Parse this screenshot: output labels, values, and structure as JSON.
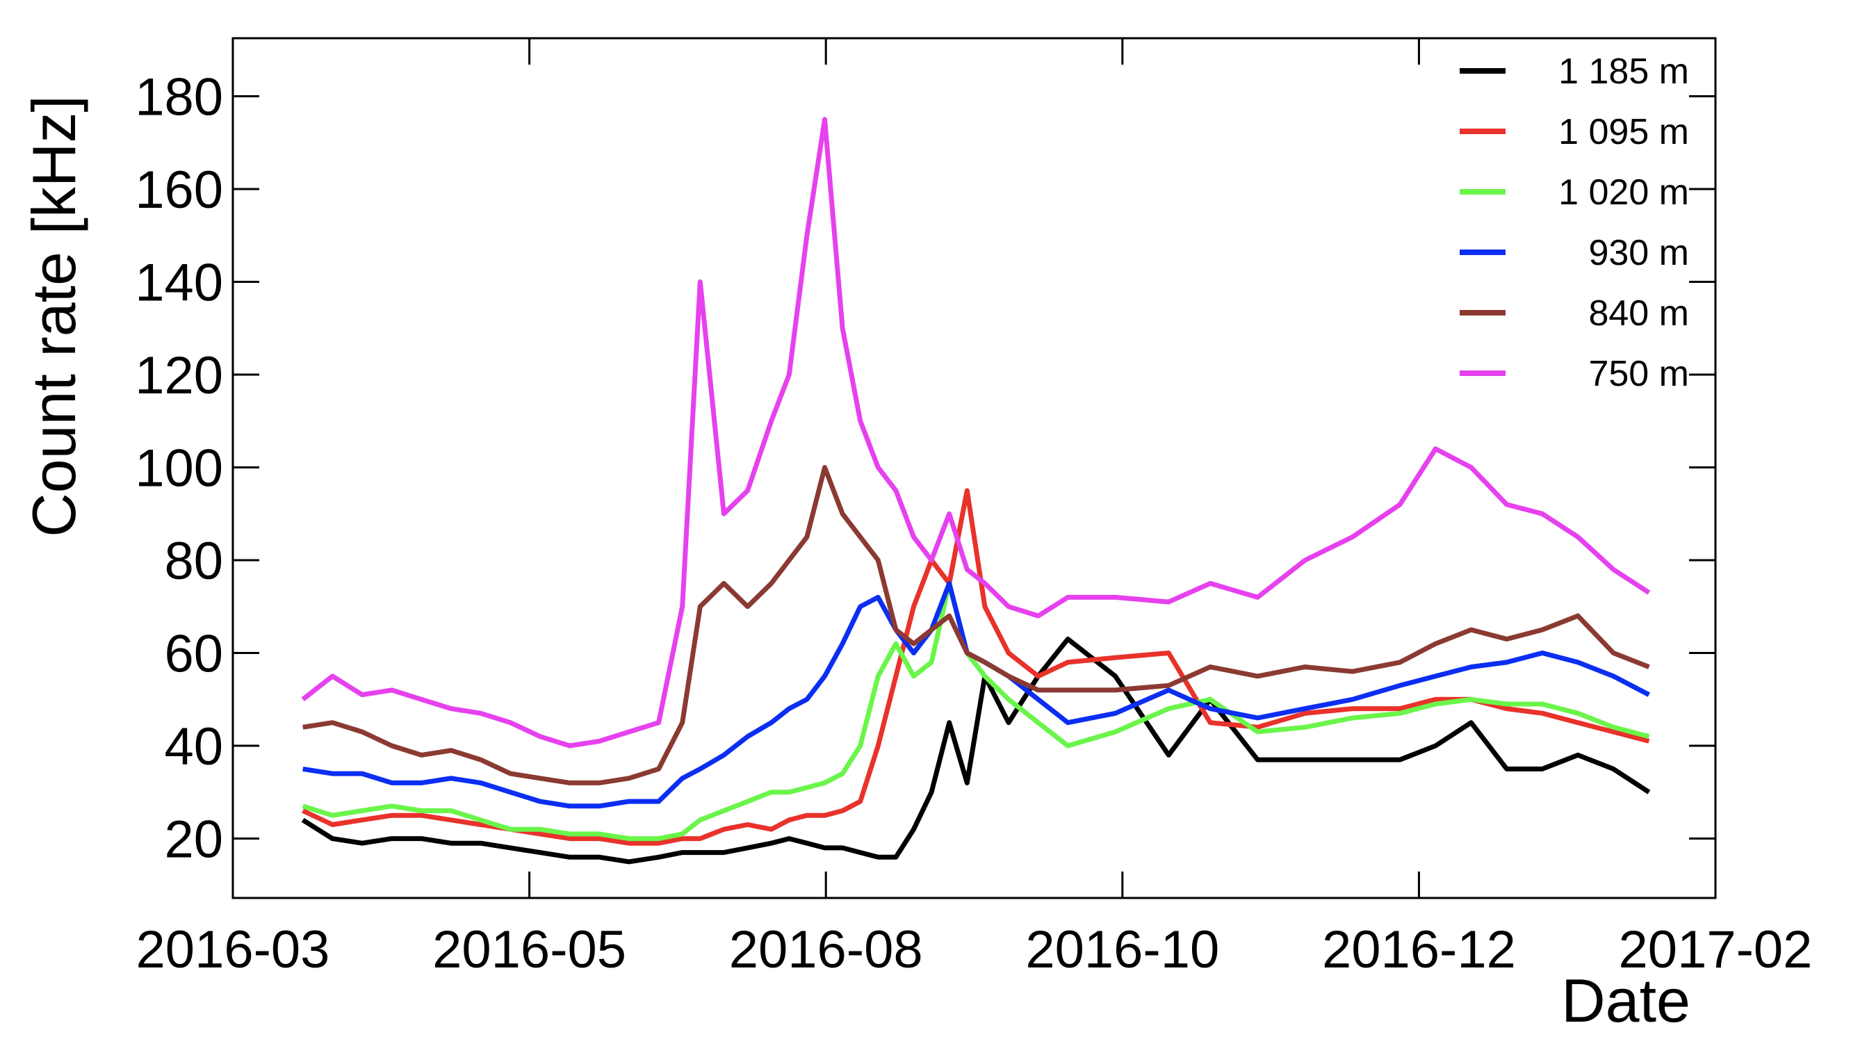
{
  "chart_data": {
    "type": "line",
    "y_label": "Count rate [kHz]",
    "x_label": "Date",
    "xlim": [
      0,
      5
    ],
    "xticks": [
      {
        "value": 0,
        "label": "2016-03"
      },
      {
        "value": 1,
        "label": "2016-05"
      },
      {
        "value": 2,
        "label": "2016-08"
      },
      {
        "value": 3,
        "label": "2016-10"
      },
      {
        "value": 4,
        "label": "2016-12"
      },
      {
        "value": 5,
        "label": "2017-02"
      }
    ],
    "ylim": [
      7.2,
      192.5
    ],
    "yticks": [
      20,
      40,
      60,
      80,
      100,
      120,
      140,
      160,
      180
    ],
    "legend": "top-right",
    "x": [
      0.236,
      0.336,
      0.436,
      0.536,
      0.636,
      0.736,
      0.836,
      0.936,
      1.036,
      1.136,
      1.236,
      1.336,
      1.436,
      1.516,
      1.576,
      1.656,
      1.736,
      1.816,
      1.876,
      1.936,
      1.996,
      2.056,
      2.116,
      2.176,
      2.236,
      2.296,
      2.356,
      2.416,
      2.476,
      2.536,
      2.616,
      2.716,
      2.816,
      2.976,
      3.156,
      3.296,
      3.456,
      3.616,
      3.776,
      3.936,
      4.056,
      4.176,
      4.296,
      4.416,
      4.536,
      4.656,
      4.776
    ],
    "series": [
      {
        "name": "1 185 m",
        "color": "#000000",
        "values": [
          24,
          20,
          19,
          20,
          20,
          19,
          19,
          18,
          17,
          16,
          16,
          15,
          16,
          17,
          17,
          17,
          18,
          19,
          20,
          19,
          18,
          18,
          17,
          16,
          16,
          22,
          30,
          45,
          32,
          55,
          45,
          55,
          63,
          55,
          38,
          50,
          37,
          37,
          37,
          37,
          40,
          45,
          35,
          35,
          38,
          35,
          30
        ]
      },
      {
        "name": "1 095 m",
        "color": "#e8322a",
        "values": [
          26,
          23,
          24,
          25,
          25,
          24,
          23,
          22,
          21,
          20,
          20,
          19,
          19,
          20,
          20,
          22,
          23,
          22,
          24,
          25,
          25,
          26,
          28,
          40,
          55,
          70,
          80,
          75,
          95,
          70,
          60,
          55,
          58,
          59,
          60,
          45,
          44,
          47,
          48,
          48,
          50,
          50,
          48,
          47,
          45,
          43,
          41
        ]
      },
      {
        "name": "1 020 m",
        "color": "#6af54a",
        "values": [
          27,
          25,
          26,
          27,
          26,
          26,
          24,
          22,
          22,
          21,
          21,
          20,
          20,
          21,
          24,
          26,
          28,
          30,
          30,
          31,
          32,
          34,
          40,
          55,
          62,
          55,
          58,
          75,
          60,
          55,
          50,
          45,
          40,
          43,
          48,
          50,
          43,
          44,
          46,
          47,
          49,
          50,
          49,
          49,
          47,
          44,
          42
        ]
      },
      {
        "name": "930 m",
        "color": "#0b2ef2",
        "values": [
          35,
          34,
          34,
          32,
          32,
          33,
          32,
          30,
          28,
          27,
          27,
          28,
          28,
          33,
          35,
          38,
          42,
          45,
          48,
          50,
          55,
          62,
          70,
          72,
          65,
          60,
          65,
          75,
          60,
          58,
          55,
          50,
          45,
          47,
          52,
          48,
          46,
          48,
          50,
          53,
          55,
          57,
          58,
          60,
          58,
          55,
          51
        ]
      },
      {
        "name": "840 m",
        "color": "#8b3a32",
        "values": [
          44,
          45,
          43,
          40,
          38,
          39,
          37,
          34,
          33,
          32,
          32,
          33,
          35,
          45,
          70,
          75,
          70,
          75,
          80,
          85,
          100,
          90,
          85,
          80,
          65,
          62,
          65,
          68,
          60,
          58,
          55,
          52,
          52,
          52,
          53,
          57,
          55,
          57,
          56,
          58,
          62,
          65,
          63,
          65,
          68,
          60,
          57
        ]
      },
      {
        "name": "750 m",
        "color": "#e641ee",
        "values": [
          50,
          55,
          51,
          52,
          50,
          48,
          47,
          45,
          42,
          40,
          41,
          43,
          45,
          70,
          140,
          90,
          95,
          110,
          120,
          150,
          175,
          130,
          110,
          100,
          95,
          85,
          80,
          90,
          78,
          75,
          70,
          68,
          72,
          72,
          71,
          75,
          72,
          80,
          85,
          92,
          104,
          100,
          92,
          90,
          85,
          78,
          73
        ]
      }
    ]
  }
}
